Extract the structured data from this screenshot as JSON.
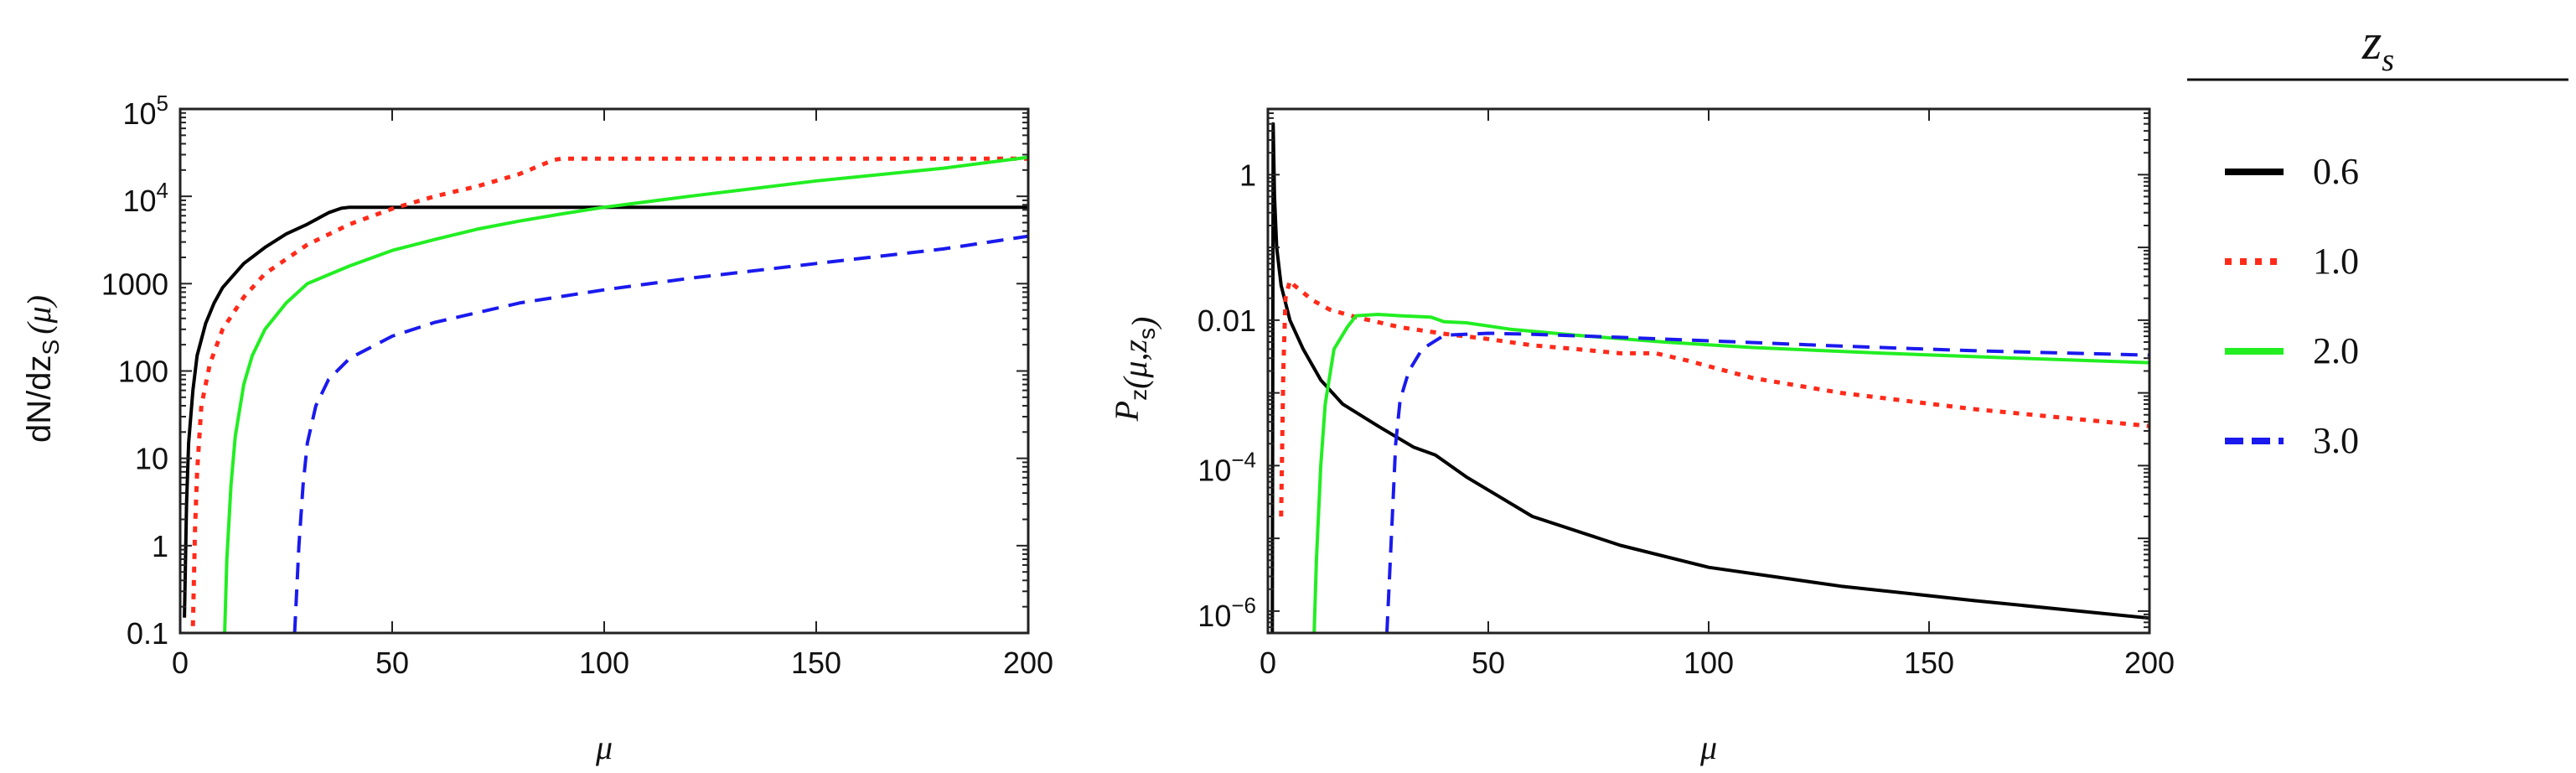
{
  "colors": {
    "zs_0_6": "#000000",
    "zs_1_0": "#ff2a1a",
    "zs_2_0": "#22ee22",
    "zs_3_0": "#1a1aee"
  },
  "legend": {
    "title": "z",
    "title_sub": "s",
    "entries": [
      {
        "label": "0.6",
        "style": "solid-black"
      },
      {
        "label": "1.0",
        "style": "dotted-red"
      },
      {
        "label": "2.0",
        "style": "solid-green"
      },
      {
        "label": "3.0",
        "style": "dashed-blue"
      }
    ]
  },
  "chart_data": [
    {
      "type": "line",
      "title": "",
      "xlabel": "μ",
      "ylabel_main": "dN/dz",
      "ylabel_sub": "S",
      "ylabel_tail": "(μ)",
      "yscale": "log",
      "xlim": [
        0,
        200
      ],
      "ylim": [
        0.1,
        100000
      ],
      "xticks": [
        {
          "value": 0,
          "label": "0"
        },
        {
          "value": 50,
          "label": "50"
        },
        {
          "value": 100,
          "label": "100"
        },
        {
          "value": 150,
          "label": "150"
        },
        {
          "value": 200,
          "label": "200"
        }
      ],
      "yticks": [
        {
          "value": 0.1,
          "label": "0.1"
        },
        {
          "value": 1,
          "label": "1"
        },
        {
          "value": 10,
          "label": "10"
        },
        {
          "value": 100,
          "label": "100"
        },
        {
          "value": 1000,
          "label": "1000"
        },
        {
          "value": 10000,
          "label": "10",
          "exp": "4"
        },
        {
          "value": 100000,
          "label": "10",
          "exp": "5"
        }
      ],
      "series": [
        {
          "name": "0.6",
          "color_key": "zs_0_6",
          "dash": "solid",
          "x": [
            1,
            1.5,
            2,
            3,
            4,
            6,
            8,
            10,
            15,
            20,
            25,
            30,
            35,
            38,
            40,
            60,
            100,
            150,
            200
          ],
          "y": [
            0.15,
            3,
            15,
            60,
            150,
            350,
            600,
            900,
            1700,
            2600,
            3700,
            4800,
            6500,
            7300,
            7500,
            7500,
            7500,
            7500,
            7500
          ]
        },
        {
          "name": "1.0",
          "color_key": "zs_1_0",
          "dash": "dotted",
          "x": [
            3,
            3.5,
            4,
            5,
            7,
            10,
            15,
            20,
            30,
            40,
            50,
            60,
            70,
            80,
            88,
            90,
            120,
            160,
            200
          ],
          "y": [
            0.12,
            1.5,
            7,
            40,
            120,
            300,
            700,
            1300,
            2800,
            4800,
            7200,
            10000,
            13000,
            18000,
            26000,
            27000,
            27000,
            27000,
            27000
          ]
        },
        {
          "name": "2.0",
          "color_key": "zs_2_0",
          "dash": "solid",
          "x": [
            10.5,
            11,
            12,
            13,
            15,
            17,
            20,
            25,
            30,
            40,
            50,
            60,
            70,
            80,
            90,
            100,
            120,
            150,
            180,
            200
          ],
          "y": [
            0.1,
            0.7,
            5,
            18,
            70,
            150,
            300,
            600,
            1000,
            1600,
            2400,
            3200,
            4200,
            5200,
            6300,
            7500,
            10000,
            15000,
            21000,
            28000
          ]
        },
        {
          "name": "3.0",
          "color_key": "zs_3_0",
          "dash": "dashed",
          "x": [
            27,
            28,
            29,
            30,
            32,
            35,
            40,
            50,
            60,
            80,
            100,
            120,
            150,
            180,
            200
          ],
          "y": [
            0.1,
            1,
            5,
            15,
            40,
            80,
            140,
            250,
            360,
            600,
            850,
            1150,
            1700,
            2500,
            3500
          ]
        }
      ]
    },
    {
      "type": "line",
      "title": "",
      "xlabel": "μ",
      "ylabel": "P_z(μ,z_s)",
      "yscale": "log",
      "xlim": [
        0,
        200
      ],
      "ylim": [
        5e-07,
        8
      ],
      "xticks": [
        {
          "value": 0,
          "label": "0"
        },
        {
          "value": 50,
          "label": "50"
        },
        {
          "value": 100,
          "label": "100"
        },
        {
          "value": 150,
          "label": "150"
        },
        {
          "value": 200,
          "label": "200"
        }
      ],
      "yticks": [
        {
          "value": 1e-06,
          "label": "10",
          "exp": "−6"
        },
        {
          "value": 0.0001,
          "label": "10",
          "exp": "−4"
        },
        {
          "value": 0.01,
          "label": "0.01"
        },
        {
          "value": 1,
          "label": "1"
        }
      ],
      "series": [
        {
          "name": "0.6",
          "color_key": "zs_0_6",
          "dash": "solid",
          "x": [
            1,
            1.2,
            1.5,
            2,
            3,
            5,
            8,
            12,
            17,
            25,
            33,
            38,
            45,
            60,
            80,
            100,
            130,
            160,
            200
          ],
          "y": [
            5e-07,
            5,
            0.5,
            0.1,
            0.03,
            0.01,
            0.004,
            0.0015,
            0.0007,
            0.00035,
            0.00018,
            0.00014,
            7e-05,
            2e-05,
            8e-06,
            4e-06,
            2.2e-06,
            1.4e-06,
            8e-07
          ]
        },
        {
          "name": "1.0",
          "color_key": "zs_1_0",
          "dash": "dotted",
          "x": [
            3,
            3.5,
            4,
            5,
            6,
            8,
            10,
            14,
            20,
            30,
            40,
            50,
            60,
            70,
            80,
            88,
            95,
            110,
            130,
            160,
            200
          ],
          "y": [
            2e-05,
            0.002,
            0.02,
            0.035,
            0.03,
            0.024,
            0.019,
            0.014,
            0.011,
            0.008,
            0.0065,
            0.0055,
            0.0045,
            0.004,
            0.0035,
            0.0035,
            0.0028,
            0.0016,
            0.001,
            0.0006,
            0.00035
          ]
        },
        {
          "name": "2.0",
          "color_key": "zs_2_0",
          "dash": "solid",
          "x": [
            10.5,
            11,
            12,
            13,
            15,
            18,
            20,
            25,
            30,
            37,
            40,
            45,
            55,
            70,
            90,
            110,
            140,
            170,
            200
          ],
          "y": [
            5e-07,
            5e-06,
            0.0001,
            0.0007,
            0.004,
            0.008,
            0.0115,
            0.012,
            0.0115,
            0.011,
            0.0095,
            0.0092,
            0.0075,
            0.0062,
            0.005,
            0.0042,
            0.0035,
            0.003,
            0.0026
          ]
        },
        {
          "name": "3.0",
          "color_key": "zs_3_0",
          "dash": "dashed",
          "x": [
            27,
            28,
            29,
            30,
            32,
            35,
            40,
            50,
            60,
            80,
            100,
            130,
            160,
            200
          ],
          "y": [
            5e-07,
            1e-05,
            0.0002,
            0.0008,
            0.002,
            0.004,
            0.0062,
            0.0066,
            0.0064,
            0.0058,
            0.0052,
            0.0044,
            0.0038,
            0.0033
          ]
        }
      ]
    }
  ]
}
